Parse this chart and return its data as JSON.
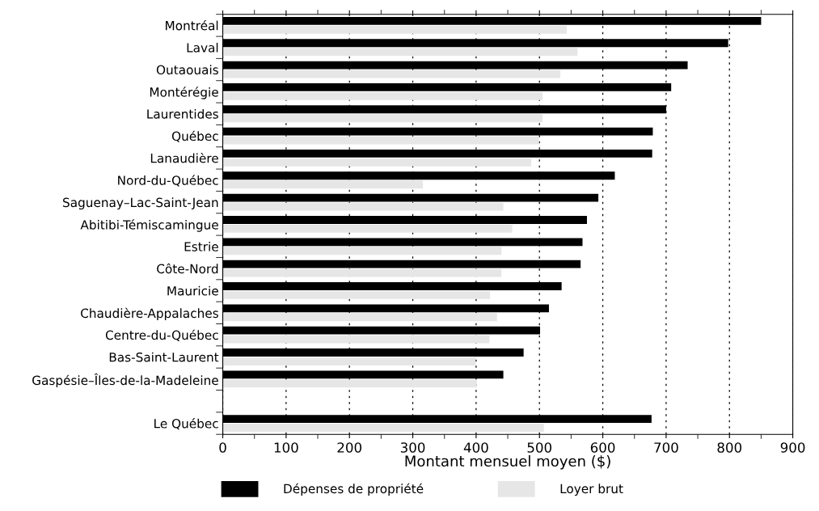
{
  "chart_data": {
    "type": "bar",
    "orientation": "horizontal",
    "xlabel": "Montant mensuel moyen ($)",
    "categories": [
      "Montréal",
      "Laval",
      "Outaouais",
      "Montérégie",
      "Laurentides",
      "Québec",
      "Lanaudière",
      "Nord-du-Québec",
      "Saguenay–Lac-Saint-Jean",
      "Abitibi-Témiscamingue",
      "Estrie",
      "Côte-Nord",
      "Mauricie",
      "Chaudière-Appalaches",
      "Centre-du-Québec",
      "Bas-Saint-Laurent",
      "Gaspésie–Îles-de-la-Madeleine",
      null,
      "Le Québec"
    ],
    "series": [
      {
        "name": "Dépenses de propriété",
        "color": "#000000",
        "values": [
          850,
          798,
          734,
          708,
          700,
          679,
          678,
          619,
          593,
          575,
          568,
          565,
          535,
          515,
          501,
          475,
          443,
          null,
          677
        ]
      },
      {
        "name": "Loyer brut",
        "color": "#e6e6e6",
        "values": [
          543,
          560,
          533,
          505,
          505,
          499,
          487,
          316,
          443,
          457,
          440,
          440,
          422,
          433,
          421,
          399,
          401,
          null,
          507
        ]
      }
    ],
    "xlim": [
      0,
      900
    ],
    "xticks": [
      0,
      100,
      200,
      300,
      400,
      500,
      600,
      700,
      800,
      900
    ],
    "grid": "x",
    "legend": "bottom"
  }
}
